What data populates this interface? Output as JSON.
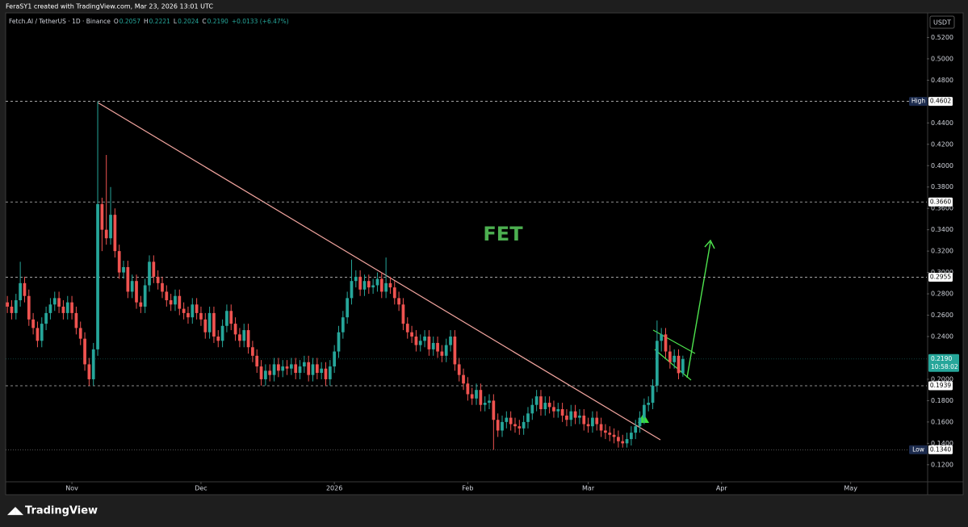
{
  "header": {
    "credit": "FeraSY1 created with TradingView.com, Mar 23, 2026 13:01 UTC",
    "brand": "TradingView"
  },
  "legend": {
    "symbol": "Fetch.AI / TetherUS · 1D · Binance",
    "o_key": "O",
    "open": "0.2057",
    "h_key": "H",
    "high": "0.2221",
    "l_key": "L",
    "low": "0.2024",
    "c_key": "C",
    "close": "0.2190",
    "change": "+0.0133 (+6.47%)"
  },
  "chart_data": {
    "type": "candlestick",
    "annotation": "FET",
    "currency": "USDT",
    "up_color": "#26a69a",
    "down_color": "#ef5350",
    "xlim": [
      -0.4,
      213.7
    ],
    "xticks": [
      {
        "value": 15,
        "label": "Nov"
      },
      {
        "value": 45,
        "label": "Dec"
      },
      {
        "value": 76,
        "label": "2026"
      },
      {
        "value": 107,
        "label": "Feb"
      },
      {
        "value": 135,
        "label": "Mar"
      },
      {
        "value": 166,
        "label": "Apr"
      },
      {
        "value": 196,
        "label": "May"
      }
    ],
    "ylim": [
      0.104,
      0.543
    ],
    "yticks": [
      {
        "value": 0.12,
        "label": "0.1200"
      },
      {
        "value": 0.14,
        "label": "0.1400"
      },
      {
        "value": 0.16,
        "label": "0.1600"
      },
      {
        "value": 0.18,
        "label": "0.1800"
      },
      {
        "value": 0.2,
        "label": "0.2000"
      },
      {
        "value": 0.24,
        "label": "0.2400"
      },
      {
        "value": 0.26,
        "label": "0.2600"
      },
      {
        "value": 0.28,
        "label": "0.2800"
      },
      {
        "value": 0.3,
        "label": "0.3000"
      },
      {
        "value": 0.32,
        "label": "0.3200"
      },
      {
        "value": 0.34,
        "label": "0.3400"
      },
      {
        "value": 0.36,
        "label": "0.3600"
      },
      {
        "value": 0.38,
        "label": "0.3800"
      },
      {
        "value": 0.4,
        "label": "0.4000"
      },
      {
        "value": 0.42,
        "label": "0.4200"
      },
      {
        "value": 0.44,
        "label": "0.4400"
      },
      {
        "value": 0.48,
        "label": "0.4800"
      },
      {
        "value": 0.5,
        "label": "0.5000"
      },
      {
        "value": 0.52,
        "label": "0.5200"
      }
    ],
    "levels": [
      {
        "value": 0.4602,
        "label": "0.4602",
        "tag": "High"
      },
      {
        "value": 0.366,
        "label": "0.3660"
      },
      {
        "value": 0.2955,
        "label": "0.2955"
      },
      {
        "value": 0.1939,
        "label": "0.1939"
      },
      {
        "value": 0.134,
        "label": "0.1340",
        "tag": "Low"
      }
    ],
    "last_price": {
      "value": 0.219,
      "label": "0.2190",
      "countdown": "10:58:02"
    },
    "open": [
      0.272,
      0.268,
      0.262,
      0.274,
      0.29,
      0.278,
      0.256,
      0.248,
      0.236,
      0.252,
      0.262,
      0.27,
      0.276,
      0.268,
      0.262,
      0.272,
      0.262,
      0.248,
      0.238,
      0.214,
      0.2,
      0.228,
      0.364,
      0.34,
      0.332,
      0.354,
      0.32,
      0.3,
      0.305,
      0.282,
      0.292,
      0.272,
      0.268,
      0.288,
      0.31,
      0.296,
      0.29,
      0.282,
      0.274,
      0.27,
      0.278,
      0.266,
      0.262,
      0.258,
      0.27,
      0.262,
      0.256,
      0.244,
      0.262,
      0.24,
      0.236,
      0.25,
      0.264,
      0.252,
      0.242,
      0.236,
      0.246,
      0.23,
      0.222,
      0.212,
      0.2,
      0.208,
      0.204,
      0.214,
      0.208,
      0.212,
      0.21,
      0.214,
      0.206,
      0.212,
      0.216,
      0.204,
      0.214,
      0.206,
      0.21,
      0.2,
      0.212,
      0.226,
      0.244,
      0.258,
      0.276,
      0.292,
      0.296,
      0.284,
      0.292,
      0.286,
      0.288,
      0.294,
      0.282,
      0.29,
      0.286,
      0.276,
      0.27,
      0.252,
      0.244,
      0.24,
      0.232,
      0.236,
      0.24,
      0.228,
      0.234,
      0.226,
      0.222,
      0.232,
      0.24,
      0.214,
      0.204,
      0.196,
      0.186,
      0.182,
      0.19,
      0.176,
      0.178,
      0.18,
      0.162,
      0.152,
      0.16,
      0.164,
      0.158,
      0.156,
      0.154,
      0.16,
      0.168,
      0.176,
      0.184,
      0.172,
      0.178,
      0.174,
      0.17,
      0.172,
      0.166,
      0.162,
      0.17,
      0.164,
      0.166,
      0.158,
      0.156,
      0.164,
      0.158,
      0.152,
      0.15,
      0.148,
      0.146,
      0.142,
      0.14,
      0.144,
      0.15,
      0.156,
      0.164,
      0.176,
      0.178,
      0.194,
      0.236,
      0.242,
      0.226,
      0.216,
      0.222,
      0.2057
    ],
    "high": [
      0.278,
      0.274,
      0.28,
      0.31,
      0.296,
      0.284,
      0.262,
      0.254,
      0.258,
      0.268,
      0.276,
      0.282,
      0.282,
      0.274,
      0.278,
      0.278,
      0.268,
      0.254,
      0.244,
      0.22,
      0.234,
      0.46,
      0.37,
      0.41,
      0.38,
      0.36,
      0.326,
      0.311,
      0.311,
      0.298,
      0.298,
      0.278,
      0.294,
      0.316,
      0.316,
      0.302,
      0.296,
      0.288,
      0.28,
      0.284,
      0.284,
      0.272,
      0.268,
      0.276,
      0.276,
      0.268,
      0.262,
      0.268,
      0.268,
      0.246,
      0.256,
      0.27,
      0.27,
      0.258,
      0.248,
      0.252,
      0.252,
      0.236,
      0.228,
      0.218,
      0.214,
      0.214,
      0.22,
      0.22,
      0.218,
      0.218,
      0.22,
      0.22,
      0.218,
      0.222,
      0.222,
      0.22,
      0.22,
      0.216,
      0.216,
      0.218,
      0.232,
      0.25,
      0.264,
      0.282,
      0.312,
      0.302,
      0.302,
      0.298,
      0.298,
      0.294,
      0.3,
      0.3,
      0.314,
      0.296,
      0.292,
      0.282,
      0.276,
      0.258,
      0.25,
      0.246,
      0.242,
      0.246,
      0.246,
      0.24,
      0.24,
      0.232,
      0.238,
      0.246,
      0.246,
      0.22,
      0.21,
      0.202,
      0.192,
      0.196,
      0.196,
      0.184,
      0.186,
      0.186,
      0.168,
      0.166,
      0.17,
      0.17,
      0.164,
      0.162,
      0.166,
      0.174,
      0.182,
      0.19,
      0.19,
      0.184,
      0.184,
      0.18,
      0.178,
      0.178,
      0.172,
      0.176,
      0.176,
      0.172,
      0.172,
      0.164,
      0.17,
      0.17,
      0.164,
      0.158,
      0.156,
      0.154,
      0.152,
      0.148,
      0.15,
      0.156,
      0.162,
      0.17,
      0.182,
      0.184,
      0.2,
      0.255,
      0.248,
      0.248,
      0.232,
      0.228,
      0.228,
      0.2221
    ],
    "low": [
      0.262,
      0.256,
      0.256,
      0.268,
      0.272,
      0.25,
      0.242,
      0.23,
      0.23,
      0.246,
      0.256,
      0.264,
      0.262,
      0.256,
      0.256,
      0.256,
      0.242,
      0.232,
      0.208,
      0.194,
      0.194,
      0.222,
      0.32,
      0.326,
      0.326,
      0.314,
      0.294,
      0.294,
      0.276,
      0.276,
      0.266,
      0.262,
      0.262,
      0.282,
      0.29,
      0.284,
      0.276,
      0.268,
      0.264,
      0.264,
      0.26,
      0.256,
      0.252,
      0.252,
      0.256,
      0.25,
      0.238,
      0.238,
      0.234,
      0.23,
      0.23,
      0.244,
      0.246,
      0.236,
      0.23,
      0.23,
      0.224,
      0.216,
      0.206,
      0.194,
      0.194,
      0.198,
      0.198,
      0.202,
      0.202,
      0.204,
      0.204,
      0.2,
      0.2,
      0.206,
      0.198,
      0.198,
      0.2,
      0.2,
      0.194,
      0.194,
      0.206,
      0.22,
      0.238,
      0.252,
      0.27,
      0.286,
      0.278,
      0.278,
      0.28,
      0.28,
      0.282,
      0.276,
      0.276,
      0.28,
      0.27,
      0.264,
      0.246,
      0.238,
      0.234,
      0.226,
      0.226,
      0.23,
      0.222,
      0.222,
      0.22,
      0.216,
      0.216,
      0.226,
      0.208,
      0.198,
      0.19,
      0.18,
      0.176,
      0.176,
      0.17,
      0.17,
      0.172,
      0.134,
      0.146,
      0.146,
      0.154,
      0.152,
      0.15,
      0.148,
      0.148,
      0.154,
      0.162,
      0.17,
      0.166,
      0.166,
      0.168,
      0.164,
      0.164,
      0.16,
      0.156,
      0.156,
      0.158,
      0.158,
      0.152,
      0.15,
      0.15,
      0.152,
      0.146,
      0.144,
      0.142,
      0.14,
      0.136,
      0.136,
      0.136,
      0.138,
      0.144,
      0.15,
      0.158,
      0.17,
      0.172,
      0.188,
      0.226,
      0.22,
      0.21,
      0.21,
      0.2,
      0.2024
    ],
    "close": [
      0.268,
      0.262,
      0.274,
      0.29,
      0.278,
      0.256,
      0.248,
      0.236,
      0.252,
      0.262,
      0.27,
      0.276,
      0.268,
      0.262,
      0.272,
      0.262,
      0.248,
      0.238,
      0.214,
      0.2,
      0.228,
      0.364,
      0.34,
      0.332,
      0.354,
      0.32,
      0.3,
      0.305,
      0.282,
      0.292,
      0.272,
      0.268,
      0.288,
      0.31,
      0.296,
      0.29,
      0.282,
      0.274,
      0.27,
      0.278,
      0.266,
      0.262,
      0.258,
      0.27,
      0.262,
      0.256,
      0.244,
      0.262,
      0.24,
      0.236,
      0.25,
      0.264,
      0.252,
      0.242,
      0.236,
      0.246,
      0.23,
      0.222,
      0.212,
      0.2,
      0.208,
      0.204,
      0.214,
      0.208,
      0.212,
      0.21,
      0.214,
      0.206,
      0.212,
      0.216,
      0.204,
      0.214,
      0.206,
      0.21,
      0.2,
      0.212,
      0.226,
      0.244,
      0.258,
      0.276,
      0.292,
      0.296,
      0.284,
      0.292,
      0.286,
      0.288,
      0.294,
      0.282,
      0.29,
      0.286,
      0.276,
      0.27,
      0.252,
      0.244,
      0.24,
      0.232,
      0.236,
      0.24,
      0.228,
      0.234,
      0.226,
      0.222,
      0.232,
      0.24,
      0.214,
      0.204,
      0.196,
      0.186,
      0.182,
      0.19,
      0.176,
      0.178,
      0.18,
      0.162,
      0.152,
      0.16,
      0.164,
      0.158,
      0.156,
      0.154,
      0.16,
      0.168,
      0.176,
      0.184,
      0.172,
      0.178,
      0.174,
      0.17,
      0.172,
      0.166,
      0.162,
      0.17,
      0.164,
      0.166,
      0.158,
      0.156,
      0.164,
      0.158,
      0.152,
      0.15,
      0.148,
      0.146,
      0.142,
      0.14,
      0.144,
      0.15,
      0.156,
      0.164,
      0.176,
      0.178,
      0.194,
      0.236,
      0.242,
      0.226,
      0.216,
      0.222,
      0.2057,
      0.219
    ]
  }
}
